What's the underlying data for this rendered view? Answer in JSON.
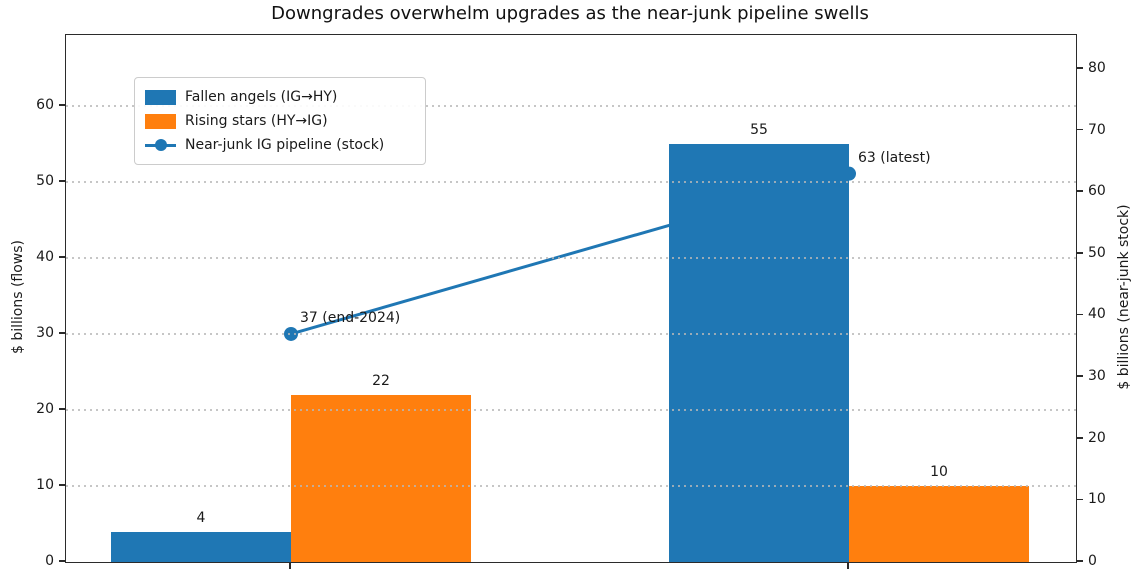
{
  "chart_data": {
    "type": "bar",
    "title": "Downgrades overwhelm upgrades as the near-junk pipeline swells",
    "categories": [
      "",
      ""
    ],
    "series": [
      {
        "name": "Fallen angels (IG→HY)",
        "kind": "bar",
        "axis": "left",
        "color": "#1f77b4",
        "values": [
          4,
          55
        ]
      },
      {
        "name": "Rising stars (HY→IG)",
        "kind": "bar",
        "axis": "left",
        "color": "#ff7f0e",
        "values": [
          22,
          10
        ]
      },
      {
        "name": "Near-junk IG pipeline (stock)",
        "kind": "line",
        "axis": "right",
        "color": "#1f77b4",
        "values": [
          37,
          63
        ]
      }
    ],
    "annotations": [
      {
        "text": "37 (end-2024)",
        "series": "Near-junk IG pipeline (stock)",
        "point_index": 0,
        "value": 37
      },
      {
        "text": "63 (latest)",
        "series": "Near-junk IG pipeline (stock)",
        "point_index": 1,
        "value": 63
      }
    ],
    "left_axis": {
      "label": "$ billions (flows)",
      "ticks": [
        0,
        10,
        20,
        30,
        40,
        50,
        60
      ],
      "min": 0,
      "max": 69.3
    },
    "right_axis": {
      "label": "$ billions (near-junk stock)",
      "ticks": [
        0,
        10,
        20,
        30,
        40,
        50,
        60,
        70,
        80
      ],
      "min": 0,
      "max": 85.5
    },
    "grid": {
      "on": true,
      "style": "dotted",
      "color": "#b8b8b8",
      "follows": "left_ticks"
    },
    "legend": {
      "position": "upper-left"
    },
    "colors": {
      "blue": "#1f77b4",
      "orange": "#ff7f0e",
      "text": "#1a1a1a",
      "spine": "#2b2b2b"
    }
  }
}
